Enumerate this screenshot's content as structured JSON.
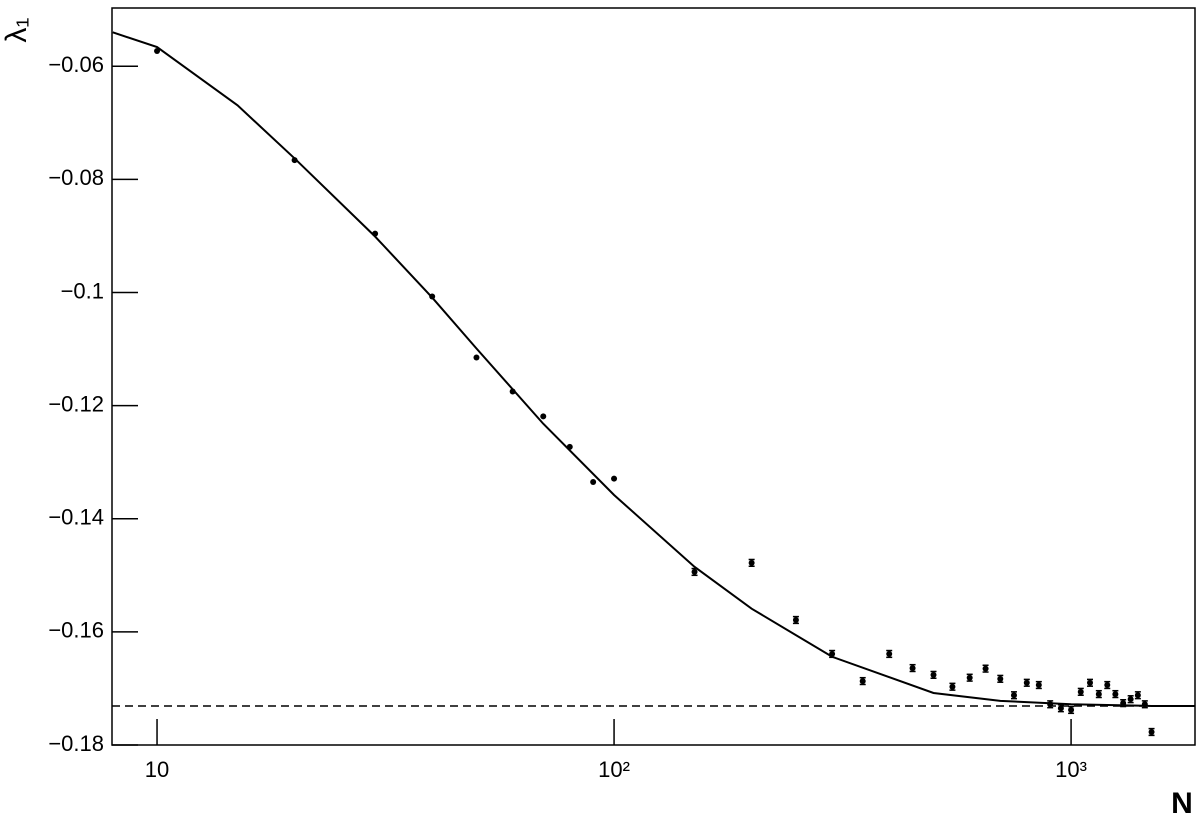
{
  "chart_data": {
    "type": "scatter",
    "x_label": "N",
    "y_label": "λ₁",
    "x": [
      10,
      20,
      30,
      40,
      50,
      60,
      70,
      80,
      90,
      100,
      150,
      200,
      250,
      300,
      350,
      400,
      450,
      500,
      550,
      600,
      650,
      700,
      750,
      800,
      850,
      900,
      950,
      1000,
      1050,
      1100,
      1150,
      1200,
      1250,
      1300,
      1350,
      1400,
      1450,
      1500
    ],
    "values": [
      -0.0573,
      -0.0766,
      -0.0896,
      -0.1007,
      -0.1115,
      -0.1175,
      -0.1219,
      -0.1273,
      -0.1335,
      -0.1329,
      -0.1494,
      -0.1478,
      -0.1579,
      -0.1639,
      -0.1687,
      -0.1639,
      -0.1664,
      -0.1676,
      -0.1697,
      -0.1681,
      -0.1665,
      -0.1683,
      -0.1712,
      -0.169,
      -0.1694,
      -0.1728,
      -0.1735,
      -0.1738,
      -0.1706,
      -0.169,
      -0.171,
      -0.1694,
      -0.171,
      -0.1726,
      -0.1719,
      -0.1712,
      -0.1728,
      -0.1777
    ],
    "errors": [
      null,
      null,
      null,
      null,
      null,
      null,
      null,
      null,
      null,
      null,
      0.0006,
      0.0006,
      0.0006,
      0.0006,
      0.0006,
      0.0006,
      0.0006,
      0.0006,
      0.0006,
      0.0006,
      0.0006,
      0.0006,
      0.0006,
      0.0006,
      0.0006,
      0.0006,
      0.0006,
      0.0006,
      0.0006,
      0.0006,
      0.0006,
      0.0006,
      0.0006,
      0.0006,
      0.0006,
      0.0006,
      0.0006,
      0.0006
    ],
    "color": "#000000",
    "fit": {
      "type": "line",
      "color": "#000000",
      "x": [
        8,
        10,
        15,
        20,
        30,
        40,
        50,
        70,
        100,
        150,
        200,
        300,
        500,
        700,
        1000,
        1500,
        1870
      ],
      "values": [
        -0.054,
        -0.0566,
        -0.0669,
        -0.0763,
        -0.0901,
        -0.1009,
        -0.1099,
        -0.1232,
        -0.1358,
        -0.1485,
        -0.1559,
        -0.1644,
        -0.1708,
        -0.1722,
        -0.1728,
        -0.1731,
        -0.1731
      ]
    },
    "reference_line": {
      "value": -0.1731,
      "style": "dashed"
    },
    "x_log": true,
    "xlim": [
      7.97,
      1867
    ],
    "xticks": [
      10,
      {
        "value": 100,
        "label": "10²"
      },
      {
        "value": 1000,
        "label": "10³"
      }
    ],
    "ylim": [
      -0.18,
      -0.0497
    ],
    "yticks": [
      {
        "value": -0.18,
        "label": "−0.18"
      },
      {
        "value": -0.16,
        "label": "−0.16"
      },
      {
        "value": -0.14,
        "label": "−0.14"
      },
      {
        "value": -0.12,
        "label": "−0.12"
      },
      {
        "value": -0.1,
        "label": "−0.1"
      },
      {
        "value": -0.08,
        "label": "−0.08"
      },
      {
        "value": -0.06,
        "label": "−0.06"
      }
    ]
  }
}
